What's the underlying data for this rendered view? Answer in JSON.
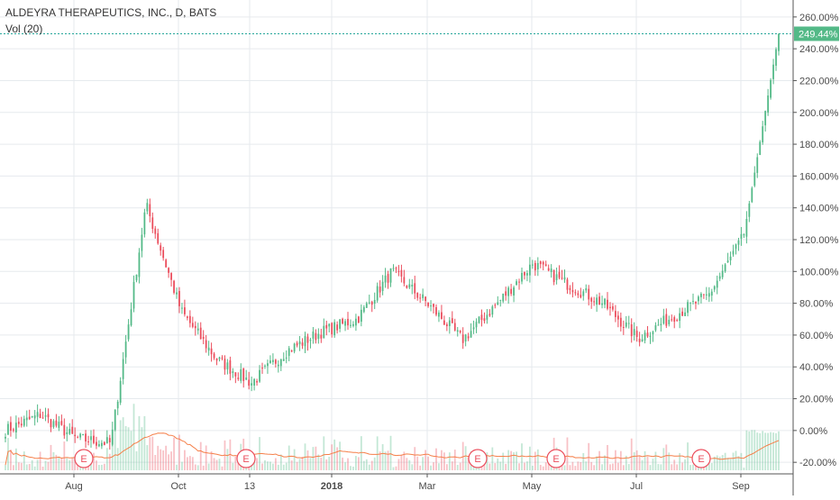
{
  "legend": {
    "symbol": "ALDEYRA THERAPEUTICS, INC., D, BATS",
    "volume": "Vol (20)"
  },
  "colors": {
    "up": "#26a69a",
    "up_fill": "#53b987",
    "down": "#eb4d5c",
    "volume_ma": "#f57f49",
    "grid": "#e6eaee",
    "text": "#4a4a4a",
    "last_badge": "#53b987"
  },
  "earnings_markers": [
    {
      "label": "E",
      "date": "2017-08-09"
    },
    {
      "label": "E",
      "date": "2017-11-09"
    },
    {
      "label": "E",
      "date": "2018-03-15"
    },
    {
      "label": "E",
      "date": "2018-05-10"
    },
    {
      "label": "E",
      "date": "2018-08-09"
    }
  ],
  "chart_data": {
    "type": "candlestick",
    "title": "ALDEYRA THERAPEUTICS, INC., D, BATS",
    "indicator": "Vol (20)",
    "y_axis": {
      "side": "right",
      "unit": "%",
      "ticks": [
        "260.00%",
        "240.00%",
        "220.00%",
        "200.00%",
        "180.00%",
        "160.00%",
        "140.00%",
        "120.00%",
        "100.00%",
        "80.00%",
        "60.00%",
        "40.00%",
        "20.00%",
        "0.00%",
        "-20.00%"
      ],
      "range": [
        -25,
        265
      ]
    },
    "x_axis": {
      "ticks": [
        "Aug",
        "Oct",
        "13",
        "2018",
        "Mar",
        "May",
        "Jul",
        "Sep"
      ],
      "bold_ticks": [
        "2018"
      ]
    },
    "last_value": {
      "value": 249.44,
      "label": "249.44%"
    },
    "grid": true,
    "series_anchors": [
      {
        "x": "Jul 2017 start",
        "y": 0
      },
      {
        "x": "Aug",
        "y": 10
      },
      {
        "x": "mid Aug",
        "y": -5
      },
      {
        "x": "early Sep",
        "y": -8
      },
      {
        "x": "late Sep spike",
        "y": 142
      },
      {
        "x": "Oct",
        "y": 75
      },
      {
        "x": "late Oct",
        "y": 45
      },
      {
        "x": "mid Nov",
        "y": 30
      },
      {
        "x": "Dec",
        "y": 50
      },
      {
        "x": "2018",
        "y": 62
      },
      {
        "x": "Feb",
        "y": 70
      },
      {
        "x": "Mar",
        "y": 100
      },
      {
        "x": "mid Mar",
        "y": 80
      },
      {
        "x": "Apr",
        "y": 57
      },
      {
        "x": "May",
        "y": 80
      },
      {
        "x": "mid May",
        "y": 105
      },
      {
        "x": "Jun",
        "y": 92
      },
      {
        "x": "Jul",
        "y": 80
      },
      {
        "x": "Aug",
        "y": 58
      },
      {
        "x": "late Aug",
        "y": 72
      },
      {
        "x": "Sep",
        "y": 85
      },
      {
        "x": "mid Sep",
        "y": 122
      },
      {
        "x": "latest",
        "y": 249.44
      }
    ]
  }
}
